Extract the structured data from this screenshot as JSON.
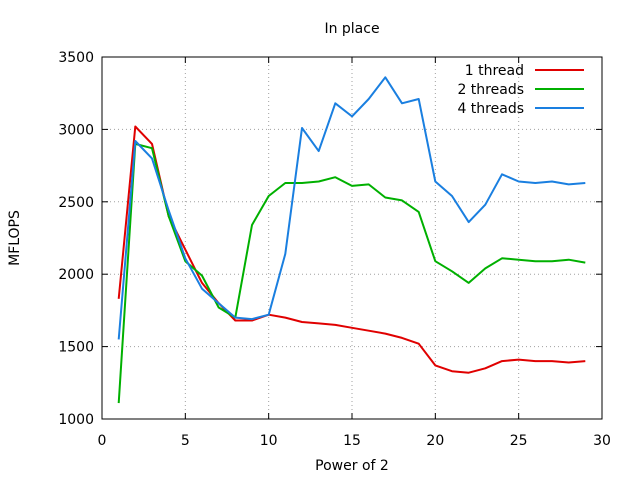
{
  "chart_data": {
    "type": "line",
    "title": "In place",
    "xlabel": "Power of 2",
    "ylabel": "MFLOPS",
    "xlim": [
      0,
      30
    ],
    "ylim": [
      1000,
      3500
    ],
    "xticks": [
      0,
      5,
      10,
      15,
      20,
      25,
      30
    ],
    "yticks": [
      1000,
      1500,
      2000,
      2500,
      3000,
      3500
    ],
    "grid": true,
    "legend_position": "top-right",
    "x": [
      1,
      2,
      3,
      4,
      5,
      6,
      7,
      8,
      9,
      10,
      11,
      12,
      13,
      14,
      15,
      16,
      17,
      18,
      19,
      20,
      21,
      22,
      23,
      24,
      25,
      26,
      27,
      28,
      29
    ],
    "series": [
      {
        "name": "1 thread",
        "color": "#e00000",
        "values": [
          1830,
          3020,
          2900,
          2400,
          2170,
          1940,
          1800,
          1680,
          1680,
          1720,
          1700,
          1670,
          1660,
          1650,
          1630,
          1610,
          1590,
          1560,
          1520,
          1370,
          1330,
          1320,
          1350,
          1400,
          1410,
          1400,
          1400,
          1390,
          1400
        ]
      },
      {
        "name": "2 threads",
        "color": "#00b000",
        "values": [
          1110,
          2900,
          2870,
          2400,
          2090,
          1990,
          1770,
          1700,
          2340,
          2540,
          2630,
          2630,
          2640,
          2670,
          2610,
          2620,
          2530,
          2510,
          2430,
          2090,
          2020,
          1940,
          2040,
          2110,
          2100,
          2090,
          2090,
          2100,
          2080
        ]
      },
      {
        "name": "4 threads",
        "color": "#1a7fe0",
        "values": [
          1550,
          2920,
          2800,
          2440,
          2110,
          1900,
          1800,
          1700,
          1690,
          1720,
          2140,
          3010,
          2850,
          3180,
          3090,
          3210,
          3360,
          3180,
          3210,
          2640,
          2540,
          2360,
          2480,
          2690,
          2640,
          2630,
          2640,
          2620,
          2630
        ]
      }
    ]
  }
}
